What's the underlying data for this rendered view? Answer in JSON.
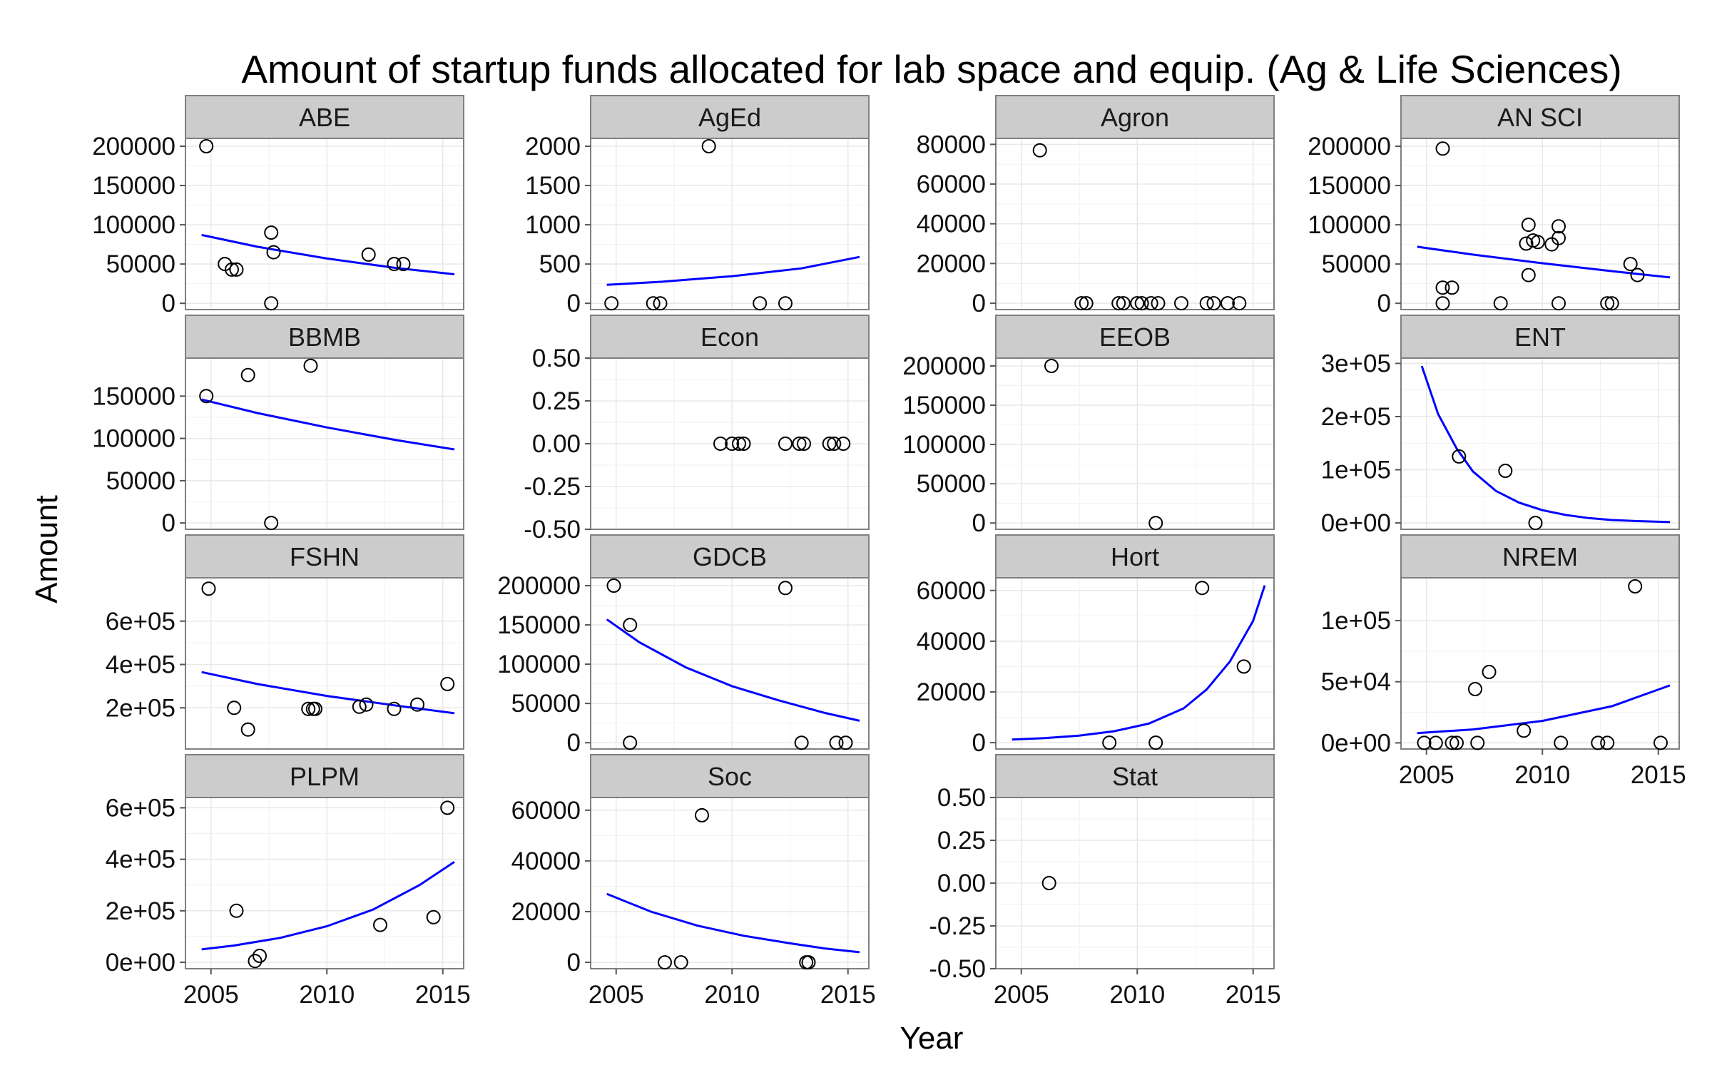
{
  "chart_data": {
    "type": "scatter",
    "title": "Amount of startup funds allocated for lab space and equip. (Ag & Life Sciences)",
    "xlabel": "Year",
    "ylabel": "Amount",
    "xlim": [
      2003.9,
      2015.9
    ],
    "x_ticks": [
      "2005",
      "2010",
      "2015"
    ],
    "point_style": "open circle",
    "fit_color": "#0000ff",
    "panel_bg": "#ffffff",
    "grid": true,
    "panels": [
      {
        "name": "ABE",
        "ylim": [
          -8000,
          210000
        ],
        "y_ticks": [
          {
            "v": 0,
            "label": "0"
          },
          {
            "v": 50000,
            "label": "50000"
          },
          {
            "v": 100000,
            "label": "100000"
          },
          {
            "v": 150000,
            "label": "150000"
          },
          {
            "v": 200000,
            "label": "200000"
          }
        ],
        "points": [
          [
            2004.8,
            200000
          ],
          [
            2005.6,
            50000
          ],
          [
            2005.9,
            43000
          ],
          [
            2006.1,
            43000
          ],
          [
            2007.6,
            90000
          ],
          [
            2007.7,
            65000
          ],
          [
            2007.6,
            0
          ],
          [
            2011.8,
            62000
          ],
          [
            2012.9,
            50000
          ],
          [
            2013.3,
            50000
          ]
        ],
        "fit": [
          [
            2004.6,
            87000
          ],
          [
            2007,
            72000
          ],
          [
            2010,
            57000
          ],
          [
            2013,
            45000
          ],
          [
            2015.5,
            37000
          ]
        ]
      },
      {
        "name": "AgEd",
        "ylim": [
          -80,
          2100
        ],
        "y_ticks": [
          {
            "v": 0,
            "label": "0"
          },
          {
            "v": 500,
            "label": "500"
          },
          {
            "v": 1000,
            "label": "1000"
          },
          {
            "v": 1500,
            "label": "1500"
          },
          {
            "v": 2000,
            "label": "2000"
          }
        ],
        "points": [
          [
            2004.8,
            0
          ],
          [
            2006.6,
            0
          ],
          [
            2006.9,
            0
          ],
          [
            2009.0,
            2000
          ],
          [
            2011.2,
            0
          ],
          [
            2012.3,
            0
          ]
        ],
        "fit": [
          [
            2004.6,
            235
          ],
          [
            2007,
            275
          ],
          [
            2010,
            345
          ],
          [
            2013,
            445
          ],
          [
            2015.5,
            590
          ]
        ]
      },
      {
        "name": "Agron",
        "ylim": [
          -3200,
          83000
        ],
        "y_ticks": [
          {
            "v": 0,
            "label": "0"
          },
          {
            "v": 20000,
            "label": "20000"
          },
          {
            "v": 40000,
            "label": "40000"
          },
          {
            "v": 60000,
            "label": "60000"
          },
          {
            "v": 80000,
            "label": "80000"
          }
        ],
        "points": [
          [
            2005.8,
            77000
          ],
          [
            2007.6,
            0
          ],
          [
            2007.8,
            0
          ],
          [
            2009.2,
            0
          ],
          [
            2009.4,
            0
          ],
          [
            2010.0,
            0
          ],
          [
            2010.2,
            0
          ],
          [
            2010.6,
            0
          ],
          [
            2010.9,
            0
          ],
          [
            2011.9,
            0
          ],
          [
            2013.0,
            0
          ],
          [
            2013.3,
            0
          ],
          [
            2013.9,
            0
          ],
          [
            2014.4,
            0
          ]
        ],
        "fit": []
      },
      {
        "name": "AN SCI",
        "ylim": [
          -8000,
          210000
        ],
        "y_ticks": [
          {
            "v": 0,
            "label": "0"
          },
          {
            "v": 50000,
            "label": "50000"
          },
          {
            "v": 100000,
            "label": "100000"
          },
          {
            "v": 150000,
            "label": "150000"
          },
          {
            "v": 200000,
            "label": "200000"
          }
        ],
        "points": [
          [
            2005.7,
            197000
          ],
          [
            2005.7,
            20000
          ],
          [
            2006.1,
            20000
          ],
          [
            2005.7,
            0
          ],
          [
            2008.2,
            0
          ],
          [
            2009.4,
            100000
          ],
          [
            2009.3,
            76000
          ],
          [
            2009.6,
            80000
          ],
          [
            2009.8,
            78000
          ],
          [
            2010.4,
            75000
          ],
          [
            2010.7,
            98000
          ],
          [
            2010.7,
            83000
          ],
          [
            2009.4,
            36000
          ],
          [
            2010.7,
            0
          ],
          [
            2012.8,
            0
          ],
          [
            2013.0,
            0
          ],
          [
            2013.8,
            50000
          ],
          [
            2014.1,
            36000
          ]
        ],
        "fit": [
          [
            2004.6,
            72000
          ],
          [
            2007,
            62000
          ],
          [
            2010,
            51000
          ],
          [
            2013,
            41000
          ],
          [
            2015.5,
            33000
          ]
        ]
      },
      {
        "name": "BBMB",
        "ylim": [
          -7500,
          195000
        ],
        "y_ticks": [
          {
            "v": 0,
            "label": "0"
          },
          {
            "v": 50000,
            "label": "50000"
          },
          {
            "v": 100000,
            "label": "100000"
          },
          {
            "v": 150000,
            "label": "150000"
          }
        ],
        "points": [
          [
            2004.8,
            150000
          ],
          [
            2006.6,
            175000
          ],
          [
            2007.6,
            0
          ],
          [
            2009.3,
            186000
          ]
        ],
        "fit": [
          [
            2004.6,
            146000
          ],
          [
            2007,
            130000
          ],
          [
            2010,
            113000
          ],
          [
            2013,
            98000
          ],
          [
            2015.5,
            87000
          ]
        ]
      },
      {
        "name": "Econ",
        "ylim": [
          -0.5,
          0.5
        ],
        "y_ticks": [
          {
            "v": -0.5,
            "label": "-0.50"
          },
          {
            "v": -0.25,
            "label": "-0.25"
          },
          {
            "v": 0,
            "label": "0.00"
          },
          {
            "v": 0.25,
            "label": "0.25"
          },
          {
            "v": 0.5,
            "label": "0.50"
          }
        ],
        "points": [
          [
            2009.5,
            0
          ],
          [
            2010.0,
            0
          ],
          [
            2010.3,
            0
          ],
          [
            2010.5,
            0
          ],
          [
            2012.3,
            0
          ],
          [
            2012.9,
            0
          ],
          [
            2013.1,
            0
          ],
          [
            2014.2,
            0
          ],
          [
            2014.4,
            0
          ],
          [
            2014.8,
            0
          ]
        ],
        "fit": []
      },
      {
        "name": "EEOB",
        "ylim": [
          -8000,
          210000
        ],
        "y_ticks": [
          {
            "v": 0,
            "label": "0"
          },
          {
            "v": 50000,
            "label": "50000"
          },
          {
            "v": 100000,
            "label": "100000"
          },
          {
            "v": 150000,
            "label": "150000"
          },
          {
            "v": 200000,
            "label": "200000"
          }
        ],
        "points": [
          [
            2006.3,
            200000
          ],
          [
            2010.8,
            0
          ]
        ],
        "fit": []
      },
      {
        "name": "ENT",
        "ylim": [
          -12000,
          310000
        ],
        "y_ticks": [
          {
            "v": 0,
            "label": "0e+00"
          },
          {
            "v": 100000,
            "label": "1e+05"
          },
          {
            "v": 200000,
            "label": "2e+05"
          },
          {
            "v": 300000,
            "label": "3e+05"
          }
        ],
        "points": [
          [
            2006.4,
            125000
          ],
          [
            2008.4,
            98000
          ],
          [
            2009.7,
            0
          ]
        ],
        "fit": [
          [
            2004.8,
            295000
          ],
          [
            2005.5,
            205000
          ],
          [
            2006.3,
            140000
          ],
          [
            2007,
            97000
          ],
          [
            2008,
            60000
          ],
          [
            2009,
            38000
          ],
          [
            2010,
            24000
          ],
          [
            2011,
            15000
          ],
          [
            2012,
            9000
          ],
          [
            2013,
            5500
          ],
          [
            2014,
            3500
          ],
          [
            2015.5,
            1500
          ]
        ]
      },
      {
        "name": "FSHN",
        "ylim": [
          10000,
          800000
        ],
        "y_ticks": [
          {
            "v": 200000,
            "label": "2e+05"
          },
          {
            "v": 400000,
            "label": "4e+05"
          },
          {
            "v": 600000,
            "label": "6e+05"
          }
        ],
        "points": [
          [
            2004.9,
            750000
          ],
          [
            2006.0,
            200000
          ],
          [
            2006.6,
            100000
          ],
          [
            2009.2,
            195000
          ],
          [
            2009.4,
            195000
          ],
          [
            2009.5,
            195000
          ],
          [
            2011.4,
            205000
          ],
          [
            2011.7,
            215000
          ],
          [
            2012.9,
            195000
          ],
          [
            2013.9,
            215000
          ],
          [
            2015.2,
            310000
          ]
        ],
        "fit": [
          [
            2004.6,
            365000
          ],
          [
            2007,
            310000
          ],
          [
            2010,
            255000
          ],
          [
            2013,
            210000
          ],
          [
            2015.5,
            175000
          ]
        ]
      },
      {
        "name": "GDCB",
        "ylim": [
          -8000,
          210000
        ],
        "y_ticks": [
          {
            "v": 0,
            "label": "0"
          },
          {
            "v": 50000,
            "label": "50000"
          },
          {
            "v": 100000,
            "label": "100000"
          },
          {
            "v": 150000,
            "label": "150000"
          },
          {
            "v": 200000,
            "label": "200000"
          }
        ],
        "points": [
          [
            2004.9,
            200000
          ],
          [
            2005.6,
            150000
          ],
          [
            2005.6,
            0
          ],
          [
            2012.3,
            197000
          ],
          [
            2013.0,
            0
          ],
          [
            2014.5,
            0
          ],
          [
            2014.9,
            0
          ]
        ],
        "fit": [
          [
            2004.6,
            157000
          ],
          [
            2006,
            128000
          ],
          [
            2008,
            96000
          ],
          [
            2010,
            72000
          ],
          [
            2012,
            54000
          ],
          [
            2014,
            38000
          ],
          [
            2015.5,
            28000
          ]
        ]
      },
      {
        "name": "Hort",
        "ylim": [
          -2500,
          65000
        ],
        "y_ticks": [
          {
            "v": 0,
            "label": "0"
          },
          {
            "v": 20000,
            "label": "20000"
          },
          {
            "v": 40000,
            "label": "40000"
          },
          {
            "v": 60000,
            "label": "60000"
          }
        ],
        "points": [
          [
            2008.8,
            0
          ],
          [
            2010.8,
            0
          ],
          [
            2012.8,
            61000
          ],
          [
            2014.6,
            30000
          ]
        ],
        "fit": [
          [
            2004.6,
            1200
          ],
          [
            2006,
            1800
          ],
          [
            2007.5,
            2800
          ],
          [
            2009,
            4500
          ],
          [
            2010.5,
            7500
          ],
          [
            2012,
            13500
          ],
          [
            2013,
            21000
          ],
          [
            2014,
            32000
          ],
          [
            2015,
            48000
          ],
          [
            2015.5,
            62000
          ]
        ]
      },
      {
        "name": "NREM",
        "ylim": [
          -5000,
          135000
        ],
        "y_ticks": [
          {
            "v": 0,
            "label": "0e+00"
          },
          {
            "v": 50000,
            "label": "5e+04"
          },
          {
            "v": 100000,
            "label": "1e+05"
          }
        ],
        "points": [
          [
            2004.9,
            0
          ],
          [
            2005.4,
            0
          ],
          [
            2006.1,
            0
          ],
          [
            2006.3,
            0
          ],
          [
            2007.1,
            44000
          ],
          [
            2007.7,
            58000
          ],
          [
            2007.2,
            0
          ],
          [
            2009.2,
            10000
          ],
          [
            2010.8,
            0
          ],
          [
            2012.4,
            0
          ],
          [
            2012.8,
            0
          ],
          [
            2014.0,
            128000
          ],
          [
            2015.1,
            0
          ]
        ],
        "fit": [
          [
            2004.6,
            8000
          ],
          [
            2007,
            11000
          ],
          [
            2010,
            18000
          ],
          [
            2013,
            30000
          ],
          [
            2015.5,
            47000
          ]
        ]
      },
      {
        "name": "PLPM",
        "ylim": [
          -25000,
          640000
        ],
        "y_ticks": [
          {
            "v": 0,
            "label": "0e+00"
          },
          {
            "v": 200000,
            "label": "2e+05"
          },
          {
            "v": 400000,
            "label": "4e+05"
          },
          {
            "v": 600000,
            "label": "6e+05"
          }
        ],
        "points": [
          [
            2006.1,
            200000
          ],
          [
            2006.9,
            5000
          ],
          [
            2007.1,
            25000
          ],
          [
            2012.3,
            145000
          ],
          [
            2014.6,
            175000
          ],
          [
            2015.2,
            600000
          ]
        ],
        "fit": [
          [
            2004.6,
            50000
          ],
          [
            2006,
            65000
          ],
          [
            2008,
            95000
          ],
          [
            2010,
            140000
          ],
          [
            2012,
            205000
          ],
          [
            2014,
            300000
          ],
          [
            2015.5,
            390000
          ]
        ]
      },
      {
        "name": "Soc",
        "ylim": [
          -2500,
          65000
        ],
        "y_ticks": [
          {
            "v": 0,
            "label": "0"
          },
          {
            "v": 20000,
            "label": "20000"
          },
          {
            "v": 40000,
            "label": "40000"
          },
          {
            "v": 60000,
            "label": "60000"
          }
        ],
        "points": [
          [
            2007.1,
            0
          ],
          [
            2007.8,
            0
          ],
          [
            2008.7,
            58000
          ],
          [
            2013.2,
            0
          ],
          [
            2013.3,
            0
          ]
        ],
        "fit": [
          [
            2004.6,
            27000
          ],
          [
            2006.5,
            20000
          ],
          [
            2008.5,
            14500
          ],
          [
            2010.5,
            10500
          ],
          [
            2012.5,
            7500
          ],
          [
            2014,
            5500
          ],
          [
            2015.5,
            4000
          ]
        ]
      },
      {
        "name": "Stat",
        "ylim": [
          -0.5,
          0.5
        ],
        "y_ticks": [
          {
            "v": -0.5,
            "label": "-0.50"
          },
          {
            "v": -0.25,
            "label": "-0.25"
          },
          {
            "v": 0,
            "label": "0.00"
          },
          {
            "v": 0.25,
            "label": "0.25"
          },
          {
            "v": 0.5,
            "label": "0.50"
          }
        ],
        "points": [
          [
            2006.2,
            0
          ]
        ],
        "fit": []
      }
    ]
  }
}
